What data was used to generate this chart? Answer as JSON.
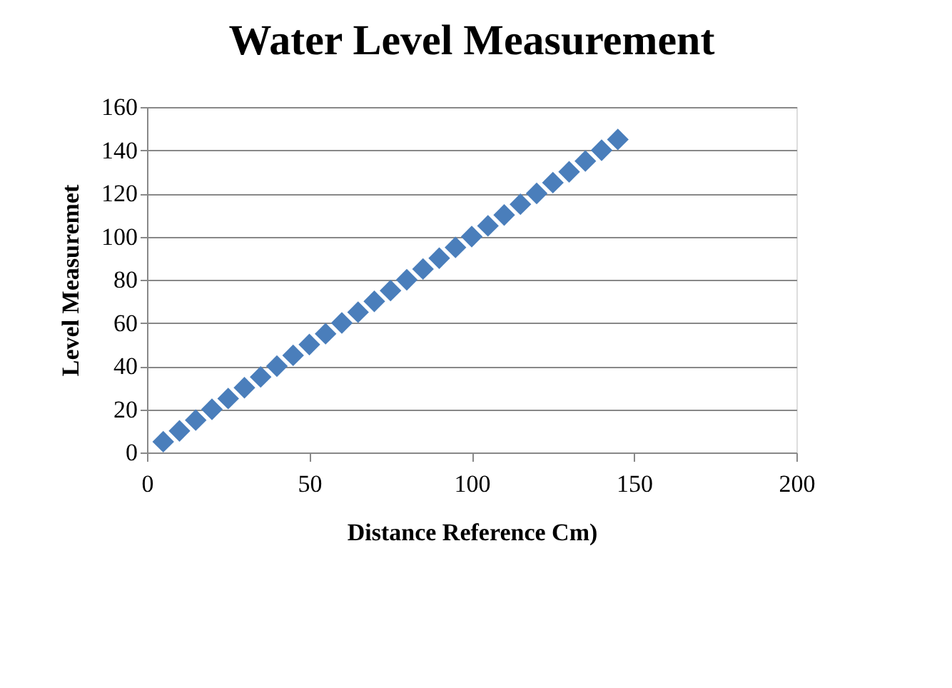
{
  "chart_data": {
    "type": "scatter",
    "title": "Water Level Measurement",
    "xlabel": "Distance Reference Cm)",
    "ylabel": "Level Measuremet",
    "x": [
      5,
      10,
      15,
      20,
      25,
      30,
      35,
      40,
      45,
      50,
      55,
      60,
      65,
      70,
      75,
      80,
      85,
      90,
      95,
      100,
      105,
      110,
      115,
      120,
      125,
      130,
      135,
      140,
      145
    ],
    "series": [
      {
        "color": "#4a7ebb",
        "values": [
          5,
          10,
          15,
          20,
          25,
          30,
          35,
          40,
          45,
          50,
          55,
          60,
          65,
          70,
          75,
          80,
          85,
          90,
          95,
          100,
          105,
          110,
          115,
          120,
          125,
          130,
          135,
          140,
          145
        ]
      }
    ],
    "xlim": [
      0,
      200
    ],
    "xticks": [
      0,
      50,
      100,
      150,
      200
    ],
    "ylim": [
      0,
      160
    ],
    "yticks": [
      0,
      20,
      40,
      60,
      80,
      100,
      120,
      140,
      160
    ],
    "grid": "y",
    "marker": "diamond"
  }
}
